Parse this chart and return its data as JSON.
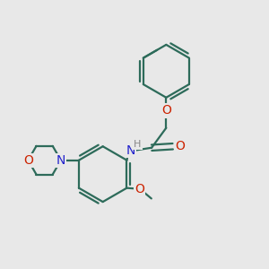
{
  "background_color": "#e8e8e8",
  "bond_color": "#2d6b5a",
  "bond_width": 1.6,
  "atom_colors": {
    "O": "#cc2200",
    "N": "#2222cc",
    "C": "#2d6b5a",
    "H": "#888888"
  },
  "font_size": 9,
  "figsize": [
    3.0,
    3.0
  ],
  "dpi": 100,
  "xlim": [
    0,
    10
  ],
  "ylim": [
    0,
    10
  ]
}
